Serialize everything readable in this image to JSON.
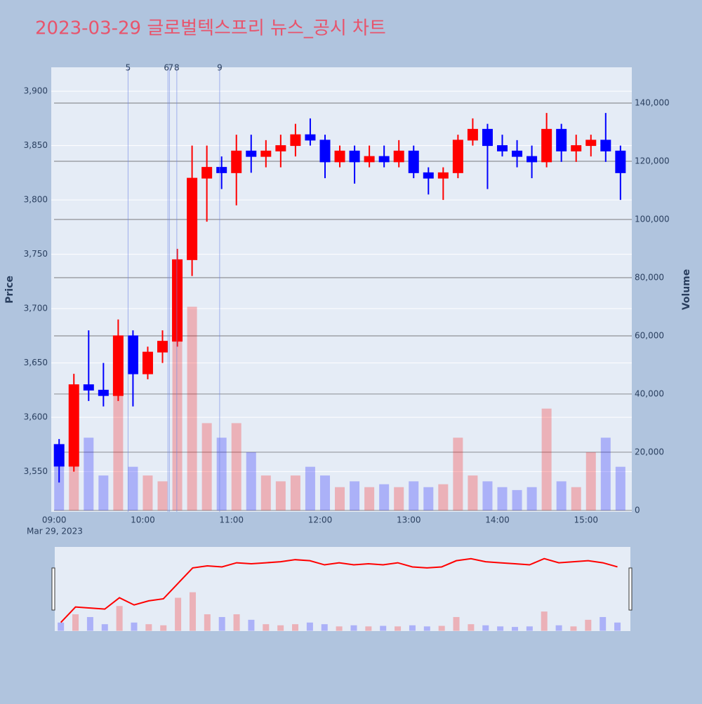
{
  "chart_data": {
    "type": "candlestick",
    "title": "2023-03-29 글로벌텍스프리 뉴스_공시 차트",
    "y_label": "Price",
    "y2_label": "Volume",
    "x_date_label": "Mar 29, 2023",
    "increasing_color": "#ff0000",
    "decreasing_color": "#0000ff",
    "x": [
      "09:00",
      "09:10",
      "09:20",
      "09:30",
      "09:40",
      "09:50",
      "10:00",
      "10:10",
      "10:20",
      "10:30",
      "10:40",
      "10:50",
      "11:00",
      "11:10",
      "11:20",
      "11:30",
      "11:40",
      "11:50",
      "12:00",
      "12:10",
      "12:20",
      "12:30",
      "12:40",
      "12:50",
      "13:00",
      "13:10",
      "13:20",
      "13:30",
      "13:40",
      "13:50",
      "14:00",
      "14:10",
      "14:20",
      "14:30",
      "14:40",
      "14:50",
      "15:00",
      "15:10",
      "15:20"
    ],
    "open": [
      3575,
      3555,
      3630,
      3625,
      3620,
      3675,
      3640,
      3660,
      3670,
      3745,
      3820,
      3830,
      3825,
      3845,
      3840,
      3845,
      3850,
      3860,
      3855,
      3835,
      3845,
      3835,
      3840,
      3835,
      3845,
      3825,
      3820,
      3825,
      3855,
      3865,
      3850,
      3845,
      3840,
      3835,
      3865,
      3845,
      3850,
      3855,
      3845
    ],
    "high": [
      3580,
      3640,
      3680,
      3650,
      3690,
      3680,
      3665,
      3680,
      3755,
      3850,
      3850,
      3840,
      3860,
      3860,
      3855,
      3860,
      3870,
      3875,
      3860,
      3850,
      3850,
      3850,
      3850,
      3855,
      3850,
      3830,
      3830,
      3860,
      3875,
      3870,
      3860,
      3855,
      3850,
      3880,
      3870,
      3860,
      3860,
      3880,
      3850
    ],
    "low": [
      3540,
      3550,
      3615,
      3610,
      3615,
      3610,
      3635,
      3650,
      3665,
      3730,
      3780,
      3810,
      3795,
      3825,
      3830,
      3830,
      3840,
      3850,
      3820,
      3830,
      3815,
      3830,
      3830,
      3830,
      3820,
      3805,
      3800,
      3820,
      3850,
      3810,
      3840,
      3830,
      3820,
      3830,
      3835,
      3835,
      3840,
      3835,
      3800
    ],
    "close": [
      3555,
      3630,
      3625,
      3620,
      3675,
      3640,
      3660,
      3670,
      3745,
      3820,
      3830,
      3825,
      3845,
      3840,
      3845,
      3850,
      3860,
      3855,
      3835,
      3845,
      3835,
      3840,
      3835,
      3845,
      3825,
      3820,
      3825,
      3855,
      3865,
      3850,
      3845,
      3840,
      3835,
      3865,
      3845,
      3850,
      3855,
      3845,
      3825
    ],
    "volume": [
      15000,
      30000,
      25000,
      12000,
      45000,
      15000,
      12000,
      10000,
      60000,
      70000,
      30000,
      25000,
      30000,
      20000,
      12000,
      10000,
      12000,
      15000,
      12000,
      8000,
      10000,
      8000,
      9000,
      8000,
      10000,
      8000,
      9000,
      25000,
      12000,
      10000,
      8000,
      7000,
      8000,
      35000,
      10000,
      8000,
      20000,
      25000,
      15000
    ],
    "xlim": [
      "08:58",
      "15:31"
    ],
    "xticks": [
      "09:00",
      "10:00",
      "11:00",
      "12:00",
      "13:00",
      "14:00",
      "15:00"
    ],
    "ylim": [
      3513,
      3922
    ],
    "yticks": [
      {
        "value": 3550,
        "label": "3,550"
      },
      {
        "value": 3600,
        "label": "3,600"
      },
      {
        "value": 3650,
        "label": "3,650"
      },
      {
        "value": 3700,
        "label": "3,700"
      },
      {
        "value": 3750,
        "label": "3,750"
      },
      {
        "value": 3800,
        "label": "3,800"
      },
      {
        "value": 3850,
        "label": "3,850"
      },
      {
        "value": 3900,
        "label": "3,900"
      }
    ],
    "y2lim": [
      -500,
      152300
    ],
    "y2ticks": [
      0,
      {
        "value": 20000,
        "label": "20,000"
      },
      {
        "value": 40000,
        "label": "40,000"
      },
      {
        "value": 60000,
        "label": "60,000"
      },
      {
        "value": 80000,
        "label": "80,000"
      },
      {
        "value": 100000,
        "label": "100,000"
      },
      {
        "value": 120000,
        "label": "120,000"
      },
      {
        "value": 140000,
        "label": "140,000"
      }
    ],
    "news_markers": [
      {
        "x": "09:50",
        "label": "5"
      },
      {
        "x": "10:17",
        "label": "6"
      },
      {
        "x": "10:18",
        "label": "7"
      },
      {
        "x": "10:23",
        "label": "8"
      },
      {
        "x": "10:52",
        "label": "9"
      }
    ]
  }
}
